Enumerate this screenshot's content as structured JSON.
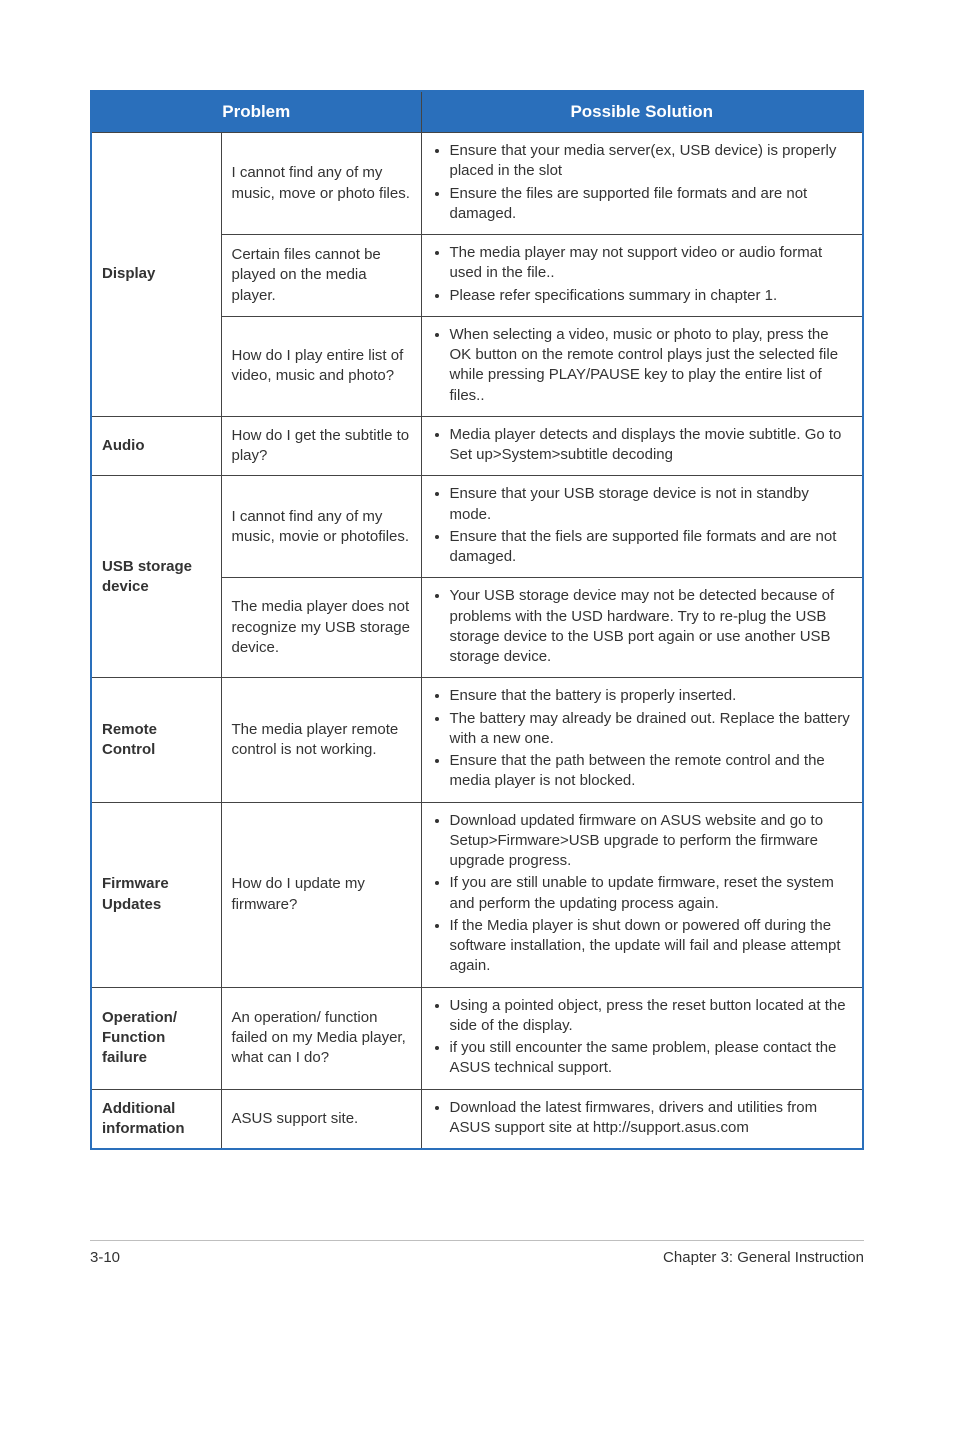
{
  "header": {
    "col1": "Problem",
    "col2": "Possible Solution"
  },
  "rows": [
    {
      "category": "Display",
      "rowspan": 3,
      "problem": "I cannot find any of my music, move or photo files.",
      "solutions": [
        "Ensure that your media server(ex, USB device) is properly placed in the slot",
        "Ensure the files are supported file formats and are not damaged."
      ]
    },
    {
      "problem": "Certain files cannot be played on the media player.",
      "solutions": [
        "The media player may not support video or audio format used in the file..",
        " Please refer specifications summary in chapter 1."
      ]
    },
    {
      "problem": "How do I play entire list of video, music and photo?",
      "solutions": [
        "When selecting a video, music or photo to play, press the OK button on the remote control plays just the selected file while pressing PLAY/PAUSE key to play the entire list of files.."
      ]
    },
    {
      "category": "Audio",
      "rowspan": 1,
      "problem": "How do I get the subtitle to play?",
      "solutions": [
        "Media player detects and displays the movie subtitle.  Go to Set up>System>subtitle decoding"
      ]
    },
    {
      "category": "USB storage device",
      "rowspan": 2,
      "problem": "I cannot find any of my music, movie or photofiles.",
      "solutions": [
        "Ensure that your USB storage device is not in standby mode.",
        "Ensure that the fiels are supported file formats and are not damaged."
      ]
    },
    {
      "problem": "The media player does not recognize my USB storage device.",
      "solutions": [
        "Your USB storage device may not be detected because of problems with the USD hardware. Try to re-plug the USB storage device to the USB port again or use another USB storage device."
      ]
    },
    {
      "category": "Remote Control",
      "rowspan": 1,
      "problem": "The media player remote control is not working.",
      "solutions": [
        "Ensure that the battery is properly inserted.",
        "The battery may already be drained out. Replace the battery with a new one.",
        "Ensure that the path between the remote control and the media player is not blocked."
      ]
    },
    {
      "category": "Firmware Updates",
      "rowspan": 1,
      "problem": "How do I update my firmware?",
      "solutions": [
        "Download updated firmware on ASUS website and go to Setup>Firmware>USB upgrade to perform the firmware upgrade progress.",
        "If you are still unable to update firmware, reset the system and perform the updating process again.",
        "If the Media player is shut down or powered off during the software installation, the update will fail and please attempt again."
      ]
    },
    {
      "category": "Operation/ Function failure",
      "rowspan": 1,
      "problem": "An operation/ function failed on my Media player, what can I do?",
      "solutions": [
        " Using a pointed object, press the reset button located at the side of the display.",
        " if you still encounter the same problem, please contact the ASUS technical support."
      ]
    },
    {
      "category": "Additional information",
      "rowspan": 1,
      "problem": "ASUS support site.",
      "solutions": [
        "Download the latest firmwares, drivers and utilities from ASUS support site at http://support.asus.com"
      ]
    }
  ],
  "footer": {
    "left": "3-10",
    "right": "Chapter 3: General Instruction"
  }
}
